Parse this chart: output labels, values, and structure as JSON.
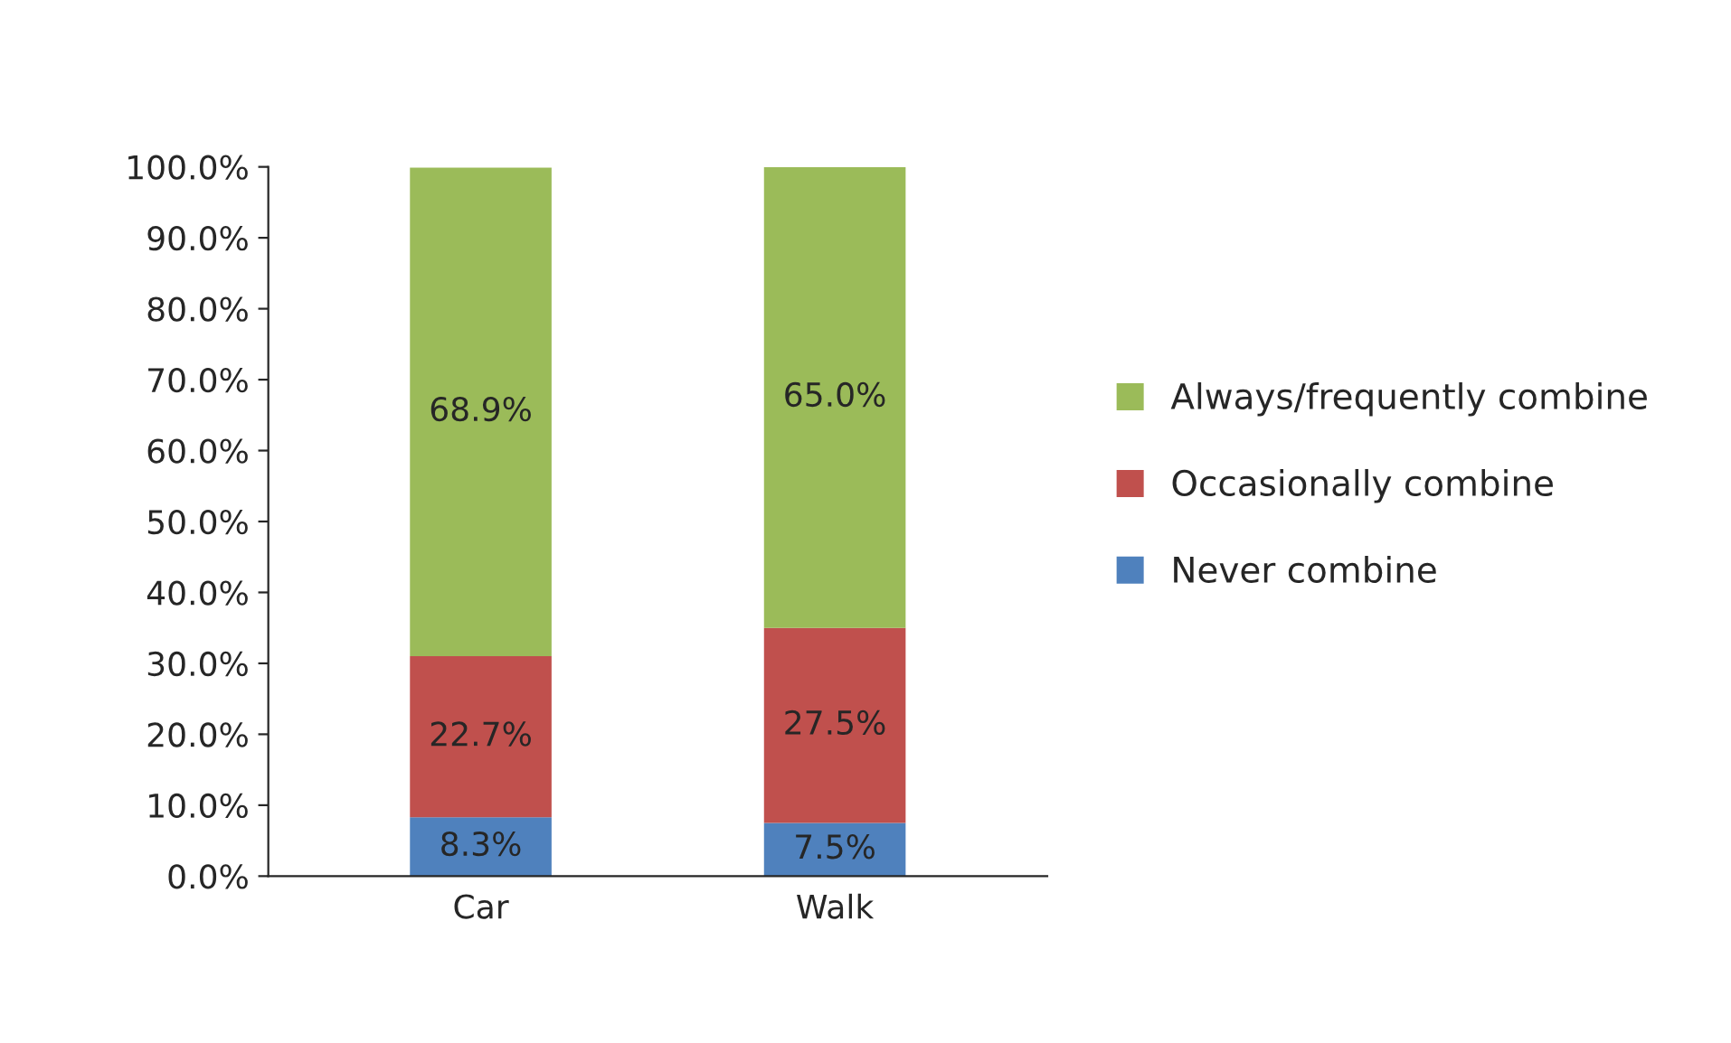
{
  "chart_data": {
    "type": "bar",
    "stacked": true,
    "categories": [
      "Car",
      "Walk"
    ],
    "series": [
      {
        "name": "Never combine",
        "color": "#4f81bd",
        "values": [
          8.3,
          7.5
        ],
        "value_labels": [
          "8.3%",
          "7.5%"
        ]
      },
      {
        "name": "Occasionally combine",
        "color": "#c0504d",
        "values": [
          22.7,
          27.5
        ],
        "value_labels": [
          "22.7%",
          "27.5%"
        ]
      },
      {
        "name": "Always/frequently combine",
        "color": "#9bbb59",
        "values": [
          68.9,
          65.0
        ],
        "value_labels": [
          "68.9%",
          "65.0%"
        ]
      }
    ],
    "ylim": [
      0,
      100
    ],
    "yticks": [
      {
        "value": 0,
        "label": "0.0%"
      },
      {
        "value": 10,
        "label": "10.0%"
      },
      {
        "value": 20,
        "label": "20.0%"
      },
      {
        "value": 30,
        "label": "30.0%"
      },
      {
        "value": 40,
        "label": "40.0%"
      },
      {
        "value": 50,
        "label": "50.0%"
      },
      {
        "value": 60,
        "label": "60.0%"
      },
      {
        "value": 70,
        "label": "70.0%"
      },
      {
        "value": 80,
        "label": "80.0%"
      },
      {
        "value": 90,
        "label": "90.0%"
      },
      {
        "value": 100,
        "label": "100.0%"
      }
    ],
    "grid": false,
    "legend": "right"
  }
}
